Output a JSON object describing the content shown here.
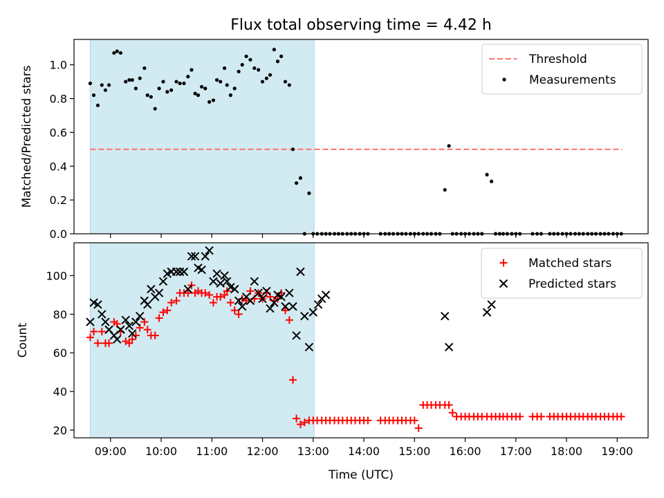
{
  "title": "Flux total observing time = 4.42 h",
  "xlabel": "Time (UTC)",
  "x_ticks": [
    "09:00",
    "10:00",
    "11:00",
    "12:00",
    "13:00",
    "14:00",
    "15:00",
    "16:00",
    "17:00",
    "18:00",
    "19:00"
  ],
  "colors": {
    "shade": "#add8e6",
    "threshold": "#ff7070",
    "measurement": "#000000",
    "matched": "#ff0000",
    "predicted": "#000000"
  },
  "chart_data": [
    {
      "type": "scatter",
      "panel": "top",
      "ylabel": "Matched/Predicted stars",
      "xlim": [
        8.28,
        19.61
      ],
      "ylim": [
        0,
        1.15
      ],
      "y_ticks": [
        "0.0",
        "0.2",
        "0.4",
        "0.6",
        "0.8",
        "1.0"
      ],
      "grid": false,
      "legend_position": "top-right",
      "shaded_region": [
        8.6,
        13.02
      ],
      "threshold": {
        "name": "Threshold",
        "y": 0.5,
        "x": [
          8.6,
          19.1
        ]
      },
      "series": [
        {
          "name": "Measurements",
          "x": [
            8.6,
            8.67,
            8.75,
            8.83,
            8.9,
            8.97,
            9.07,
            9.13,
            9.2,
            9.3,
            9.37,
            9.43,
            9.5,
            9.58,
            9.67,
            9.73,
            9.8,
            9.88,
            9.96,
            10.04,
            10.12,
            10.2,
            10.3,
            10.37,
            10.45,
            10.53,
            10.6,
            10.67,
            10.73,
            10.8,
            10.87,
            10.95,
            11.03,
            11.1,
            11.17,
            11.25,
            11.3,
            11.37,
            11.45,
            11.53,
            11.6,
            11.68,
            11.76,
            11.84,
            11.92,
            12.0,
            12.08,
            12.15,
            12.23,
            12.3,
            12.37,
            12.45,
            12.53,
            12.6,
            12.67,
            12.75,
            12.83,
            12.92,
            13.0,
            13.08,
            13.17,
            13.25,
            13.33,
            13.42,
            13.5,
            13.58,
            13.67,
            13.75,
            13.83,
            13.92,
            14.0,
            14.08,
            14.33,
            14.42,
            14.5,
            14.58,
            14.67,
            14.75,
            14.83,
            14.92,
            15.0,
            15.08,
            15.17,
            15.25,
            15.33,
            15.42,
            15.5,
            15.6,
            15.68,
            15.75,
            15.83,
            15.92,
            16.0,
            16.08,
            16.17,
            16.25,
            16.33,
            16.43,
            16.52,
            16.6,
            16.68,
            16.75,
            16.83,
            16.92,
            17.0,
            17.08,
            17.33,
            17.42,
            17.5,
            17.67,
            17.75,
            17.83,
            17.92,
            18.0,
            18.08,
            18.17,
            18.25,
            18.33,
            18.42,
            18.5,
            18.58,
            18.67,
            18.75,
            18.83,
            18.92,
            19.0,
            19.08
          ],
          "y": [
            0.89,
            0.82,
            0.76,
            0.88,
            0.85,
            0.88,
            1.07,
            1.08,
            1.07,
            0.9,
            0.91,
            0.91,
            0.86,
            0.92,
            0.98,
            0.82,
            0.81,
            0.74,
            0.86,
            0.9,
            0.84,
            0.85,
            0.9,
            0.89,
            0.89,
            0.93,
            0.97,
            0.83,
            0.82,
            0.87,
            0.86,
            0.78,
            0.79,
            0.91,
            0.9,
            0.98,
            0.88,
            0.82,
            0.86,
            0.96,
            1.0,
            1.05,
            1.03,
            0.98,
            0.97,
            0.9,
            0.92,
            0.94,
            1.09,
            1.02,
            1.05,
            0.9,
            0.88,
            0.5,
            0.3,
            0.33,
            0.0,
            0.24,
            0.0,
            0.0,
            0.0,
            0.0,
            0.0,
            0.0,
            0.0,
            0.0,
            0.0,
            0.0,
            0.0,
            0.0,
            0.0,
            0.0,
            0.0,
            0.0,
            0.0,
            0.0,
            0.0,
            0.0,
            0.0,
            0.0,
            0.0,
            0.0,
            0.0,
            0.0,
            0.0,
            0.0,
            0.0,
            0.26,
            0.52,
            0.0,
            0.0,
            0.0,
            0.0,
            0.0,
            0.0,
            0.0,
            0.0,
            0.35,
            0.31,
            0.0,
            0.0,
            0.0,
            0.0,
            0.0,
            0.0,
            0.0,
            0.0,
            0.0,
            0.0,
            0.0,
            0.0,
            0.0,
            0.0,
            0.0,
            0.0,
            0.0,
            0.0,
            0.0,
            0.0,
            0.0,
            0.0,
            0.0,
            0.0,
            0.0,
            0.0,
            0.0,
            0.0
          ]
        }
      ]
    },
    {
      "type": "scatter",
      "panel": "bottom",
      "ylabel": "Count",
      "xlim": [
        8.28,
        19.61
      ],
      "ylim": [
        16,
        117
      ],
      "y_ticks": [
        "20",
        "40",
        "60",
        "80",
        "100"
      ],
      "grid": false,
      "legend_position": "top-right",
      "shaded_region": [
        8.6,
        13.02
      ],
      "series": [
        {
          "name": "Matched stars",
          "marker": "plus",
          "x": [
            8.6,
            8.67,
            8.75,
            8.83,
            8.9,
            8.97,
            9.07,
            9.13,
            9.2,
            9.3,
            9.37,
            9.43,
            9.5,
            9.58,
            9.67,
            9.73,
            9.8,
            9.88,
            9.96,
            10.04,
            10.12,
            10.2,
            10.3,
            10.37,
            10.45,
            10.53,
            10.6,
            10.67,
            10.73,
            10.8,
            10.87,
            10.95,
            11.03,
            11.1,
            11.17,
            11.25,
            11.3,
            11.37,
            11.45,
            11.53,
            11.6,
            11.68,
            11.76,
            11.84,
            11.92,
            12.0,
            12.08,
            12.15,
            12.23,
            12.3,
            12.37,
            12.45,
            12.53,
            12.6,
            12.67,
            12.75,
            12.83,
            12.92,
            13.0,
            13.08,
            13.17,
            13.25,
            13.33,
            13.42,
            13.5,
            13.58,
            13.67,
            13.75,
            13.83,
            13.92,
            14.0,
            14.08,
            14.33,
            14.42,
            14.5,
            14.58,
            14.67,
            14.75,
            14.83,
            14.92,
            15.0,
            15.08,
            15.17,
            15.25,
            15.33,
            15.42,
            15.5,
            15.6,
            15.68,
            15.75,
            15.83,
            15.92,
            16.0,
            16.08,
            16.17,
            16.25,
            16.33,
            16.43,
            16.52,
            16.6,
            16.68,
            16.75,
            16.83,
            16.92,
            17.0,
            17.08,
            17.33,
            17.42,
            17.5,
            17.67,
            17.75,
            17.83,
            17.92,
            18.0,
            18.08,
            18.17,
            18.25,
            18.33,
            18.42,
            18.5,
            18.58,
            18.67,
            18.75,
            18.83,
            18.92,
            19.0,
            19.08
          ],
          "y": [
            68,
            71,
            65,
            71,
            65,
            65,
            76,
            75,
            71,
            66,
            65,
            67,
            69,
            73,
            76,
            72,
            69,
            69,
            78,
            81,
            82,
            86,
            87,
            91,
            91,
            91,
            95,
            91,
            92,
            91,
            91,
            90,
            86,
            89,
            89,
            90,
            92,
            86,
            82,
            80,
            88,
            87,
            92,
            88,
            91,
            88,
            91,
            89,
            87,
            88,
            91,
            82,
            77,
            46,
            26,
            23,
            24,
            25,
            25,
            25,
            25,
            25,
            25,
            25,
            25,
            25,
            25,
            25,
            25,
            25,
            25,
            25,
            25,
            25,
            25,
            25,
            25,
            25,
            25,
            25,
            25,
            21,
            33,
            33,
            33,
            33,
            33,
            33,
            33,
            29,
            27,
            27,
            27,
            27,
            27,
            27,
            27,
            27,
            27,
            27,
            27,
            27,
            27,
            27,
            27,
            27,
            27,
            27,
            27,
            27,
            27,
            27,
            27,
            27,
            27,
            27,
            27,
            27,
            27,
            27,
            27,
            27,
            27,
            27,
            27,
            27,
            27
          ]
        },
        {
          "name": "Predicted stars",
          "marker": "x",
          "x": [
            8.6,
            8.67,
            8.75,
            8.83,
            8.9,
            8.97,
            9.07,
            9.13,
            9.2,
            9.3,
            9.37,
            9.43,
            9.5,
            9.58,
            9.67,
            9.73,
            9.8,
            9.88,
            9.96,
            10.04,
            10.12,
            10.2,
            10.3,
            10.37,
            10.45,
            10.53,
            10.6,
            10.67,
            10.73,
            10.8,
            10.87,
            10.95,
            11.03,
            11.1,
            11.17,
            11.25,
            11.3,
            11.37,
            11.45,
            11.53,
            11.6,
            11.68,
            11.76,
            11.84,
            11.92,
            12.0,
            12.08,
            12.15,
            12.23,
            12.3,
            12.37,
            12.45,
            12.53,
            12.6,
            12.67,
            12.75,
            12.83,
            12.92,
            13.0,
            13.1,
            13.17,
            13.25,
            15.6,
            15.68,
            16.43,
            16.52
          ],
          "y": [
            76,
            86,
            85,
            80,
            76,
            72,
            69,
            67,
            72,
            77,
            74,
            70,
            76,
            79,
            87,
            85,
            93,
            89,
            91,
            97,
            101,
            102,
            102,
            102,
            102,
            93,
            110,
            110,
            104,
            103,
            110,
            113,
            97,
            101,
            96,
            100,
            97,
            94,
            93,
            87,
            84,
            89,
            87,
            97,
            91,
            88,
            92,
            83,
            86,
            90,
            89,
            84,
            91,
            84,
            69,
            102,
            79,
            63,
            81,
            85,
            88,
            90,
            79,
            63,
            81,
            85
          ]
        }
      ]
    }
  ],
  "legends": {
    "top": [
      {
        "key": "threshold",
        "label": "Threshold"
      },
      {
        "key": "measurement",
        "label": "Measurements"
      }
    ],
    "bottom": [
      {
        "key": "matched",
        "label": "Matched stars"
      },
      {
        "key": "predicted",
        "label": "Predicted stars"
      }
    ]
  }
}
